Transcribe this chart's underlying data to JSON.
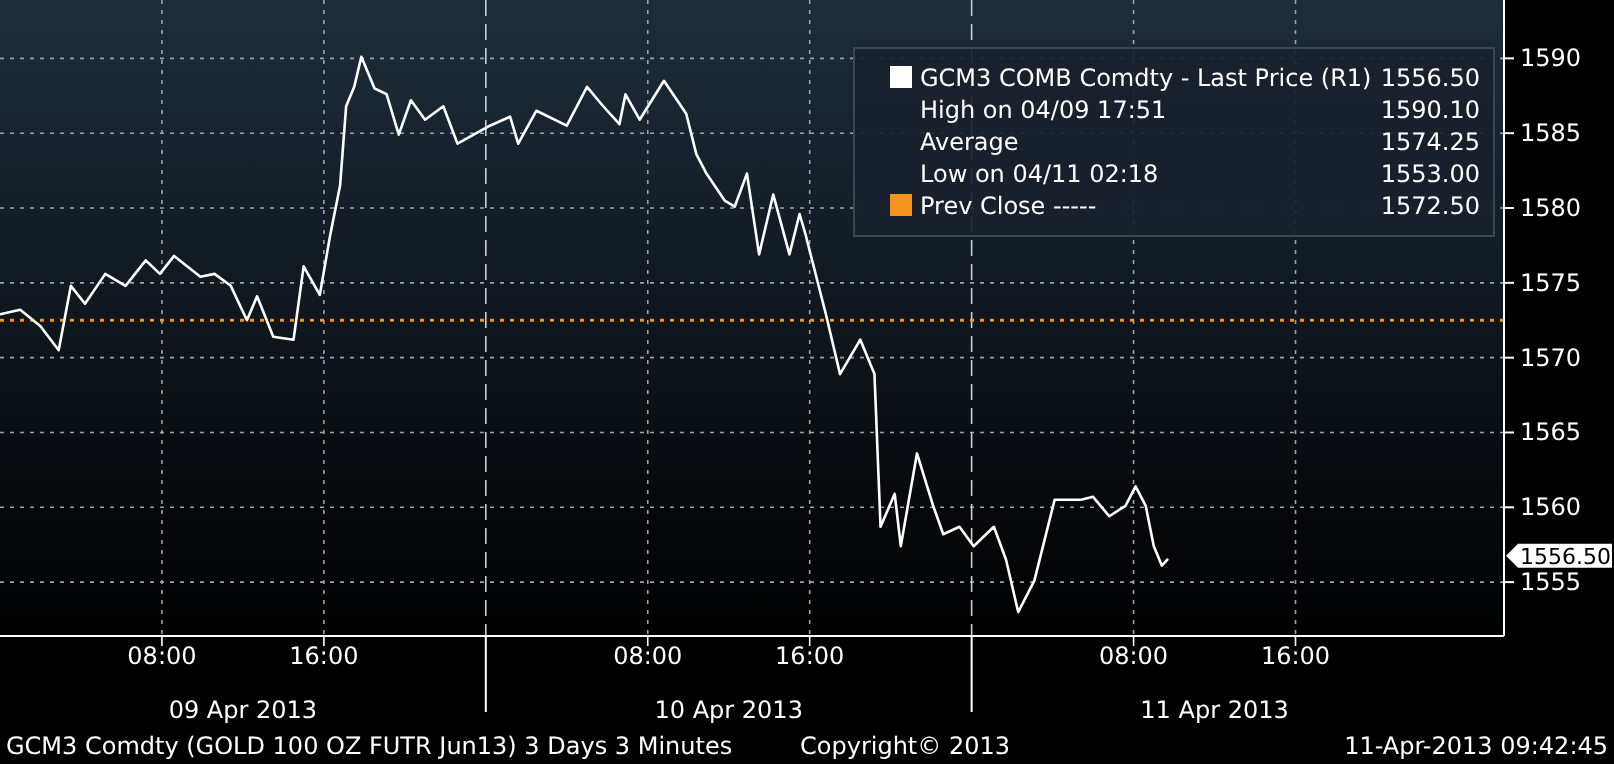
{
  "chart_data": {
    "type": "line",
    "xlim": [
      "2013-04-09T00:00",
      "2013-04-12T02:18"
    ],
    "ylim": [
      1551.4,
      1593.9
    ],
    "xticks": [
      {
        "value": "2013-04-09T08:00",
        "label": "08:00"
      },
      {
        "value": "2013-04-09T16:00",
        "label": "16:00"
      },
      {
        "value": "2013-04-10T00:00",
        "label": null
      },
      {
        "value": "2013-04-10T08:00",
        "label": "08:00"
      },
      {
        "value": "2013-04-10T16:00",
        "label": "16:00"
      },
      {
        "value": "2013-04-11T00:00",
        "label": null
      },
      {
        "value": "2013-04-11T08:00",
        "label": "08:00"
      },
      {
        "value": "2013-04-11T16:00",
        "label": "16:00"
      }
    ],
    "yticks": [
      1555,
      1560,
      1565,
      1570,
      1575,
      1580,
      1585,
      1590
    ],
    "grid": true,
    "legend": "top right",
    "marker": "none",
    "line_style": "solid",
    "series": [
      {
        "name": "GCM3 COMB Comdty - Last Price (R1)",
        "color": "#ffffff",
        "x": [
          "2013-04-09T00:00",
          "2013-04-09T01:00",
          "2013-04-09T02:00",
          "2013-04-09T02:54",
          "2013-04-09T03:30",
          "2013-04-09T04:12",
          "2013-04-09T05:12",
          "2013-04-09T06:12",
          "2013-04-09T07:12",
          "2013-04-09T07:54",
          "2013-04-09T08:36",
          "2013-04-09T09:54",
          "2013-04-09T10:36",
          "2013-04-09T11:24",
          "2013-04-09T12:12",
          "2013-04-09T12:42",
          "2013-04-09T13:30",
          "2013-04-09T14:30",
          "2013-04-09T15:00",
          "2013-04-09T15:48",
          "2013-04-09T16:18",
          "2013-04-09T16:48",
          "2013-04-09T17:06",
          "2013-04-09T17:30",
          "2013-04-09T17:51",
          "2013-04-09T18:30",
          "2013-04-09T19:06",
          "2013-04-09T19:42",
          "2013-04-09T20:18",
          "2013-04-09T21:00",
          "2013-04-09T21:54",
          "2013-04-09T22:36",
          "2013-04-09T23:24",
          "2013-04-10T00:12",
          "2013-04-10T01:12",
          "2013-04-10T01:36",
          "2013-04-10T02:30",
          "2013-04-10T04:00",
          "2013-04-10T05:00",
          "2013-04-10T05:48",
          "2013-04-10T06:36",
          "2013-04-10T06:54",
          "2013-04-10T07:36",
          "2013-04-10T08:48",
          "2013-04-10T09:54",
          "2013-04-10T10:24",
          "2013-04-10T10:54",
          "2013-04-10T11:48",
          "2013-04-10T12:18",
          "2013-04-10T12:54",
          "2013-04-10T13:30",
          "2013-04-10T14:12",
          "2013-04-10T15:00",
          "2013-04-10T15:30",
          "2013-04-10T15:48",
          "2013-04-10T16:48",
          "2013-04-10T17:30",
          "2013-04-10T18:30",
          "2013-04-10T19:12",
          "2013-04-10T19:30",
          "2013-04-10T20:12",
          "2013-04-10T20:30",
          "2013-04-10T21:18",
          "2013-04-10T22:06",
          "2013-04-10T22:36",
          "2013-04-10T23:24",
          "2013-04-11T00:06",
          "2013-04-11T01:06",
          "2013-04-11T01:42",
          "2013-04-11T02:18",
          "2013-04-11T03:06",
          "2013-04-11T04:06",
          "2013-04-11T05:24",
          "2013-04-11T06:00",
          "2013-04-11T06:48",
          "2013-04-11T07:36",
          "2013-04-11T08:06",
          "2013-04-11T08:36",
          "2013-04-11T09:00",
          "2013-04-11T09:24",
          "2013-04-11T09:40"
        ],
        "values": [
          1572.9,
          1573.2,
          1572.1,
          1570.5,
          1574.8,
          1573.6,
          1575.6,
          1574.8,
          1576.5,
          1575.6,
          1576.8,
          1575.4,
          1575.6,
          1574.8,
          1572.5,
          1574.1,
          1571.4,
          1571.2,
          1576.1,
          1574.2,
          1578.1,
          1581.5,
          1586.8,
          1588.1,
          1590.1,
          1588.0,
          1587.6,
          1584.9,
          1587.2,
          1585.9,
          1586.8,
          1584.3,
          1584.9,
          1585.5,
          1586.1,
          1584.3,
          1586.5,
          1585.5,
          1588.1,
          1586.8,
          1585.6,
          1587.6,
          1585.9,
          1588.5,
          1586.3,
          1583.6,
          1582.3,
          1580.5,
          1580.1,
          1582.3,
          1576.9,
          1580.9,
          1576.9,
          1579.6,
          1578.2,
          1572.9,
          1568.9,
          1571.2,
          1568.9,
          1558.7,
          1560.9,
          1557.4,
          1563.6,
          1560.1,
          1558.2,
          1558.7,
          1557.4,
          1558.7,
          1556.5,
          1553.0,
          1555.1,
          1560.5,
          1560.5,
          1560.7,
          1559.4,
          1560.1,
          1561.4,
          1560.1,
          1557.4,
          1556.1,
          1556.5
        ]
      }
    ],
    "ref_lines": [
      {
        "axis": "y",
        "value": 1572.5,
        "label": "Prev Close -----",
        "color": "#f7941d",
        "line_style": "dotted"
      }
    ],
    "annotations": [
      "1556.50",
      "High on 04/09 17:51",
      "1590.10",
      "Average",
      "1574.25",
      "Low on 04/11 02:18",
      "1553.00",
      "1572.50",
      "1556.50",
      "09 Apr 2013",
      "10 Apr 2013",
      "11 Apr 2013",
      "GCM3 Comdty (GOLD 100 OZ FUTR  Jun13) 3 Days 3 Minutes",
      "Copyright© 2013",
      "11-Apr-2013 09:42:45"
    ]
  }
}
